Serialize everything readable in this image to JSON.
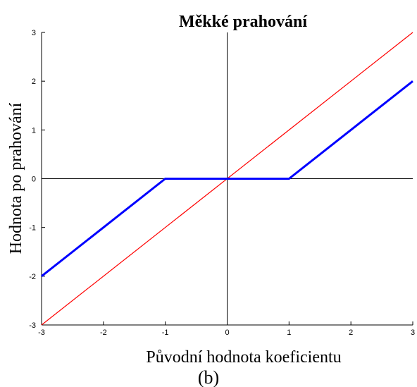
{
  "chart_data": {
    "type": "line",
    "title": "Měkké prahování",
    "xlabel": "Původní hodnota koeficientu",
    "ylabel": "Hodnota po prahování",
    "caption": "(b)",
    "xlim": [
      -3,
      3
    ],
    "ylim": [
      -3,
      3
    ],
    "xticks": [
      -3,
      -2,
      -1,
      0,
      1,
      2,
      3
    ],
    "yticks": [
      -3,
      -2,
      -1,
      0,
      1,
      2,
      3
    ],
    "grid": false,
    "series": [
      {
        "color": "#ff0000",
        "width": 1.2,
        "x": [
          -3,
          3
        ],
        "values": [
          -3,
          3
        ]
      },
      {
        "color": "#0000ff",
        "width": 3,
        "x": [
          -3,
          -1,
          1,
          3
        ],
        "values": [
          -2,
          0,
          0,
          2
        ]
      }
    ]
  }
}
